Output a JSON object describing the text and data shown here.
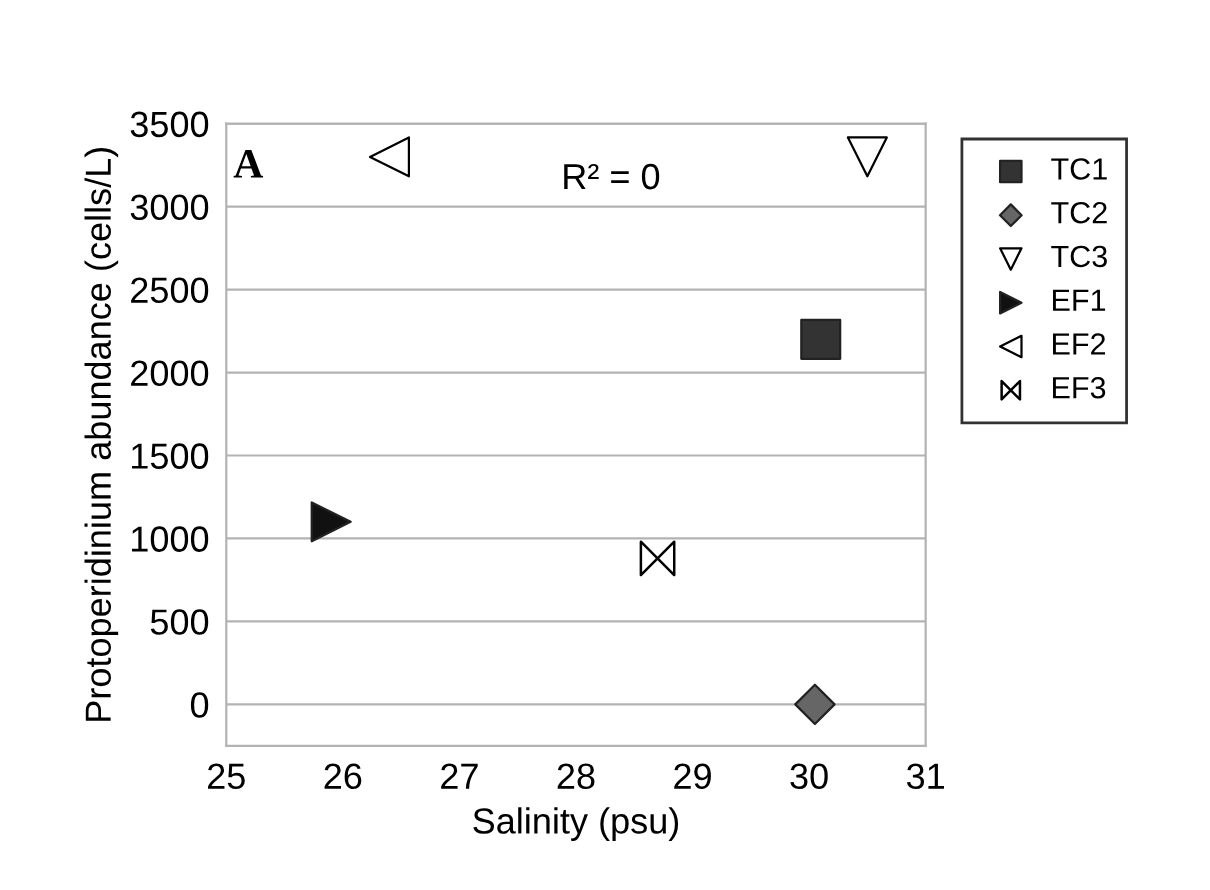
{
  "chart_data": {
    "type": "scatter",
    "xlabel": "Salinity (psu)",
    "ylabel": "Protoperidinium abundance (cells/L)",
    "xlim": [
      25,
      31
    ],
    "xticks": [
      25,
      26,
      27,
      28,
      29,
      30,
      31
    ],
    "ylim": [
      -250,
      3500
    ],
    "yticks": [
      0,
      500,
      1000,
      1500,
      2000,
      2500,
      3000,
      3500
    ],
    "grid": "y",
    "legend": "right",
    "annotations": [
      "A",
      "R² = 0"
    ],
    "series": [
      {
        "name": "TC1",
        "color": "#333333",
        "marker": "square",
        "x": [
          30.1
        ],
        "values": [
          2200
        ]
      },
      {
        "name": "TC2",
        "color": "#666666",
        "marker": "diamond",
        "x": [
          30.05
        ],
        "values": [
          0
        ]
      },
      {
        "name": "TC3",
        "color": "#ffffff",
        "marker": "triangle-down",
        "x": [
          30.5
        ],
        "values": [
          3300
        ]
      },
      {
        "name": "EF1",
        "color": "#111111",
        "marker": "triangle-right",
        "x": [
          25.9
        ],
        "values": [
          1100
        ]
      },
      {
        "name": "EF2",
        "color": "#ffffff",
        "marker": "triangle-left",
        "x": [
          26.4
        ],
        "values": [
          3300
        ]
      },
      {
        "name": "EF3",
        "color": "#000000",
        "x": [
          28.7
        ],
        "values": [
          880
        ]
      }
    ]
  }
}
